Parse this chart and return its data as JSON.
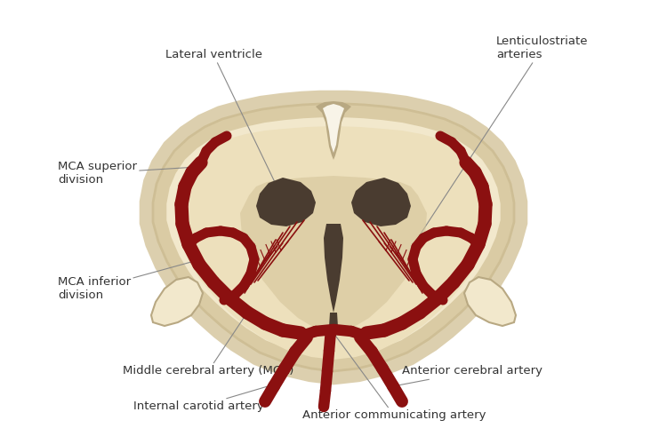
{
  "bg_color": "#ffffff",
  "brain_fill": "#f2e8cc",
  "brain_border": "#b8a882",
  "brain_inner_fill": "#ede0bc",
  "ventricle_color": "#4a3c30",
  "artery_color": "#8b1010",
  "text_color": "#333333",
  "shadow_color": "#d4c49a",
  "labels": {
    "lateral_ventricle": "Lateral ventricle",
    "lenticulostriate": "Lenticulostriate\narteries",
    "mca_superior": "MCA superior\ndivision",
    "mca_inferior": "MCA inferior\ndivision",
    "middle_cerebral": "Middle cerebral artery (MCA)",
    "internal_carotid": "Internal carotid artery",
    "anterior_cerebral": "Anterior cerebral artery",
    "anterior_communicating": "Anterior communicating artery"
  },
  "fontsize": 9.5
}
